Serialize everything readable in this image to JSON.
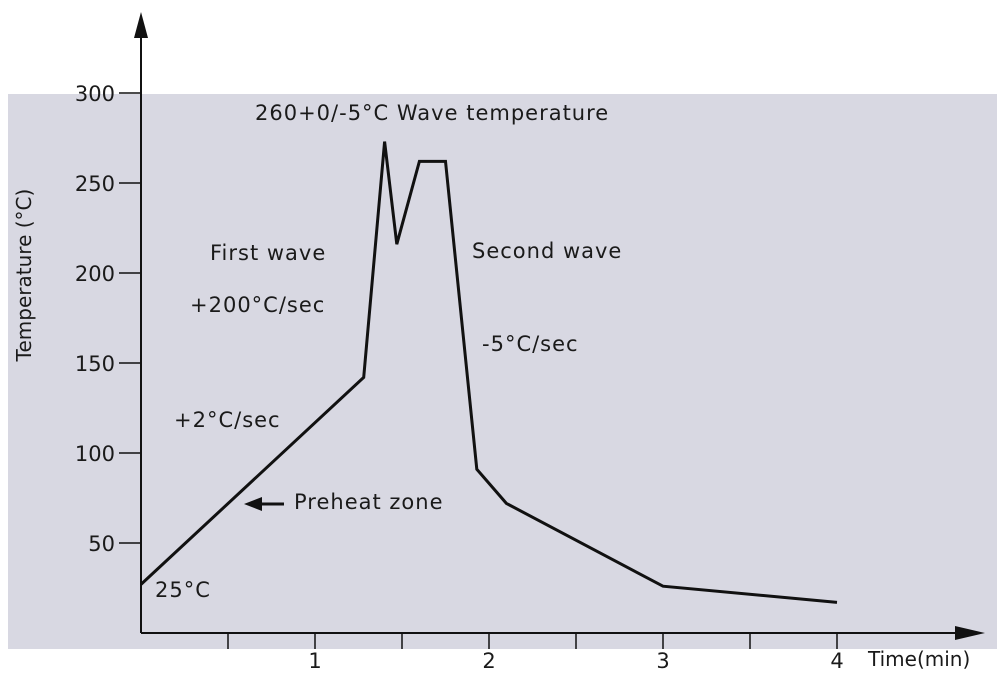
{
  "chart_data": {
    "type": "line",
    "xlabel": "Time(min)",
    "ylabel": "Temperature (°C)",
    "xlim": [
      0,
      4.6
    ],
    "ylim": [
      0,
      300
    ],
    "x_ticks": [
      1,
      2,
      3,
      4
    ],
    "x_minor_ticks": [
      0.5,
      1.5,
      2.5,
      3.5
    ],
    "y_ticks": [
      50,
      100,
      150,
      200,
      250,
      300
    ],
    "grid": false,
    "background_color": "#d8d8e2",
    "line_color": "#111111",
    "series": [
      {
        "x": [
          0,
          1.28,
          1.4,
          1.47,
          1.6,
          1.75,
          1.93,
          2.1,
          3.0,
          4.0
        ],
        "y": [
          27,
          142,
          273,
          216,
          262,
          262,
          91,
          72,
          26,
          17
        ]
      }
    ],
    "annotations": [
      {
        "id": "wave",
        "text": "260+0/-5°C Wave temperature"
      },
      {
        "id": "first-wave",
        "text": "First wave"
      },
      {
        "id": "rate-200",
        "text": "+200°C/sec"
      },
      {
        "id": "second-wave",
        "text": "Second wave"
      },
      {
        "id": "rate-minus5",
        "text": "-5°C/sec"
      },
      {
        "id": "rate-2",
        "text": "+2°C/sec"
      },
      {
        "id": "preheat",
        "text": "Preheat zone"
      },
      {
        "id": "start-temp",
        "text": "25°C"
      }
    ]
  }
}
